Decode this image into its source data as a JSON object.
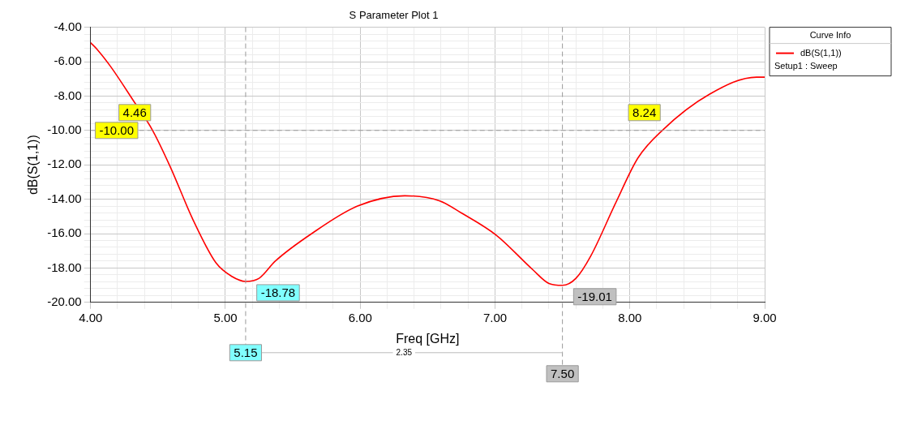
{
  "chart_data": {
    "type": "line",
    "title": "S Parameter Plot 1",
    "xlabel": "Freq [GHz]",
    "ylabel": "dB(S(1,1))",
    "legend_title": "Curve Info",
    "legend": "top right",
    "grid": true,
    "marker": "none",
    "line_style": "solid",
    "x": [
      4.0,
      4.05,
      4.15,
      4.32,
      4.46,
      4.59,
      4.76,
      4.93,
      5.05,
      5.15,
      5.25,
      5.37,
      5.64,
      5.98,
      6.33,
      6.59,
      6.75,
      7.01,
      7.28,
      7.4,
      7.5,
      7.6,
      7.71,
      7.89,
      8.06,
      8.24,
      8.59,
      8.94,
      9.0
    ],
    "series": [
      {
        "name": "dB(S(1,1))",
        "color": "#ff0000",
        "values": [
          -4.9,
          -5.3,
          -6.3,
          -8.3,
          -10.0,
          -12.1,
          -15.2,
          -17.7,
          -18.5,
          -18.78,
          -18.6,
          -17.6,
          -16.0,
          -14.4,
          -13.8,
          -14.1,
          -14.8,
          -16.1,
          -18.1,
          -18.9,
          -19.01,
          -18.6,
          -17.3,
          -14.3,
          -11.6,
          -10.0,
          -7.9,
          -6.9,
          -6.9
        ]
      }
    ],
    "xlim": [
      4,
      9
    ],
    "xticks": [
      {
        "value": 4,
        "label": "4.00"
      },
      {
        "value": 5,
        "label": "5.00"
      },
      {
        "value": 6,
        "label": "6.00"
      },
      {
        "value": 7,
        "label": "7.00"
      },
      {
        "value": 8,
        "label": "8.00"
      },
      {
        "value": 9,
        "label": "9.00"
      }
    ],
    "ylim": [
      -20,
      -4
    ],
    "yticks": [
      {
        "value": -20,
        "label": "-20.00"
      },
      {
        "value": -18,
        "label": "-18.00"
      },
      {
        "value": -16,
        "label": "-16.00"
      },
      {
        "value": -14,
        "label": "-14.00"
      },
      {
        "value": -12,
        "label": "-12.00"
      },
      {
        "value": -10,
        "label": "-10.00"
      },
      {
        "value": -8,
        "label": "-8.00"
      },
      {
        "value": -6,
        "label": "-6.00"
      },
      {
        "value": -4,
        "label": "-4.00"
      }
    ],
    "ref_lines": [
      {
        "axis": "y",
        "value": -10,
        "label": "-10.00",
        "line_style": "dashed"
      },
      {
        "axis": "x",
        "value": 5.15,
        "label": "5.15",
        "line_style": "dashed"
      },
      {
        "axis": "x",
        "value": 7.5,
        "label": "7.50",
        "line_style": "dashed"
      }
    ],
    "annotations": [
      {
        "text": "4.46",
        "x": 4.46,
        "y": -10
      },
      {
        "text": "8.24",
        "x": 8.24,
        "y": -10
      },
      {
        "text": "-18.78",
        "x": 5.15,
        "y": -18.78
      },
      {
        "text": "-19.01",
        "x": 7.5,
        "y": -19.01
      },
      "2.35",
      "Setup1 : Sweep"
    ]
  }
}
